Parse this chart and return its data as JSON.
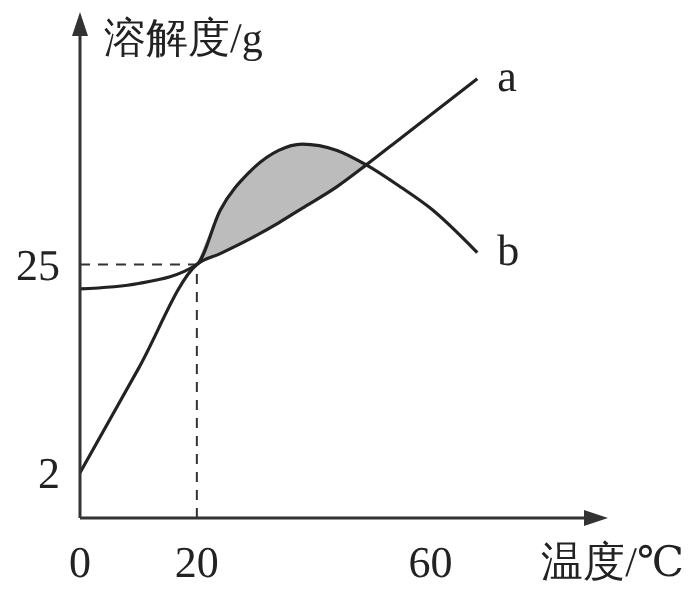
{
  "chart_data": {
    "type": "line",
    "xlabel": "温度/℃",
    "ylabel": "溶解度/g",
    "x": [
      0,
      10,
      20,
      24,
      29,
      34,
      38,
      44,
      49,
      55,
      60,
      68
    ],
    "series": [
      {
        "name": "a",
        "color": "#222222",
        "values": [
          2,
          13.5,
          25,
          26.2,
          27.8,
          29.6,
          31.2,
          33.6,
          36,
          39,
          41.5,
          45.5
        ]
      },
      {
        "name": "b",
        "color": "#222222",
        "values": [
          22.3,
          22.9,
          25,
          31,
          35.2,
          37.6,
          38.3,
          37.6,
          36,
          33.5,
          31.2,
          26.3
        ],
        "lower": [
          null,
          null,
          25,
          26.2,
          27.8,
          29.6,
          31.2,
          33.6,
          36,
          null,
          null,
          null
        ],
        "upper": [
          null,
          null,
          25,
          31,
          35.2,
          37.6,
          38.3,
          37.6,
          36,
          null,
          null,
          null
        ]
      }
    ],
    "xlim": [
      0,
      89
    ],
    "xticks": [
      0,
      20,
      60
    ],
    "ylim": [
      -3,
      52
    ],
    "yticks": [
      2,
      25
    ],
    "ref_lines": [
      {
        "axis": "x",
        "value": 20,
        "line_style": "dashed"
      },
      {
        "axis": "y",
        "value": 25,
        "line_style": "dashed"
      }
    ],
    "grid": false,
    "marker": "none",
    "line_style": "solid"
  }
}
